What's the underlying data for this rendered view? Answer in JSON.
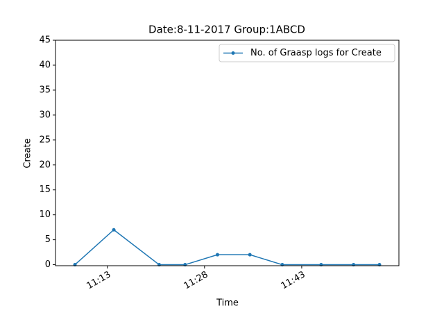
{
  "chart_data": {
    "type": "line",
    "title": "Date:8-11-2017  Group:1ABCD",
    "x_label": "Time",
    "y_label": "Create",
    "x": [
      "11:08",
      "11:14",
      "11:21",
      "11:25",
      "11:30",
      "11:35",
      "11:40",
      "11:46",
      "11:51",
      "11:55"
    ],
    "series": [
      {
        "name": "No. of Graasp logs for Create",
        "color": "#1f77b4",
        "values": [
          0,
          7,
          0,
          0,
          2,
          2,
          0,
          0,
          0,
          0
        ]
      }
    ],
    "xlim": [
      "11:05",
      "11:58"
    ],
    "xticks": [
      "11:13",
      "11:28",
      "11:43"
    ],
    "ylim": [
      -0.2,
      45
    ],
    "yticks": [
      0,
      5,
      10,
      15,
      20,
      25,
      30,
      35,
      40,
      45
    ],
    "legend": "upper right"
  }
}
